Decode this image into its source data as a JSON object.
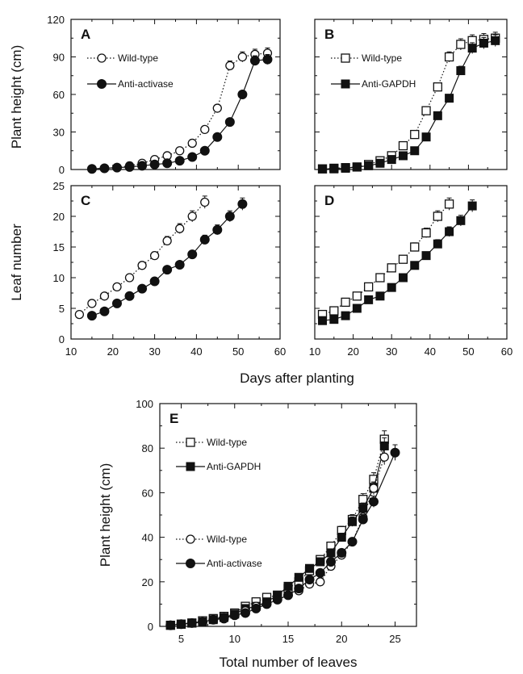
{
  "figure": {
    "shared_xlabel_top": "Days after planting",
    "ylabel_height": "Plant height (cm)",
    "ylabel_leaf": "Leaf number"
  },
  "chart_data": [
    {
      "panel": "A",
      "type": "line",
      "xlabel": "",
      "ylabel": "Plant height (cm)",
      "xlim": [
        10,
        60
      ],
      "ylim": [
        0,
        120
      ],
      "xticks": [],
      "yticks": [
        0,
        30,
        60,
        90,
        120
      ],
      "legend": "top-left",
      "series": [
        {
          "name": "Wild-type",
          "marker": "open-circle",
          "line": "dotted",
          "x": [
            15,
            18,
            21,
            24,
            27,
            30,
            33,
            36,
            39,
            42,
            45,
            48,
            51,
            54,
            57
          ],
          "y": [
            0.5,
            1,
            1.5,
            3,
            5,
            8,
            11,
            15,
            21,
            32,
            49,
            83,
            90,
            92,
            93
          ]
        },
        {
          "name": "Anti-activase",
          "marker": "filled-circle",
          "line": "solid",
          "x": [
            15,
            18,
            21,
            24,
            27,
            30,
            33,
            36,
            39,
            42,
            45,
            48,
            51,
            54,
            57
          ],
          "y": [
            0.5,
            1,
            1.5,
            2,
            3,
            4,
            5,
            7,
            10,
            15,
            26,
            38,
            60,
            87,
            88
          ]
        }
      ]
    },
    {
      "panel": "B",
      "type": "line",
      "xlabel": "",
      "ylabel": "",
      "xlim": [
        10,
        60
      ],
      "ylim": [
        0,
        120
      ],
      "xticks": [],
      "yticks": [],
      "legend": "top-left",
      "series": [
        {
          "name": "Wild-type",
          "marker": "open-square",
          "line": "dotted",
          "x": [
            12,
            15,
            18,
            21,
            24,
            27,
            30,
            33,
            36,
            39,
            42,
            45,
            48,
            51,
            54,
            57
          ],
          "y": [
            0.5,
            1,
            1.5,
            2,
            4,
            7,
            11,
            19,
            28,
            47,
            66,
            90,
            100,
            103,
            104,
            105
          ]
        },
        {
          "name": "Anti-GAPDH",
          "marker": "filled-square",
          "line": "solid",
          "x": [
            12,
            15,
            18,
            21,
            24,
            27,
            30,
            33,
            36,
            39,
            42,
            45,
            48,
            51,
            54,
            57
          ],
          "y": [
            0.5,
            0.5,
            1,
            2,
            3,
            5,
            8,
            11,
            15,
            26,
            43,
            57,
            79,
            97,
            101,
            103
          ]
        }
      ]
    },
    {
      "panel": "C",
      "type": "line",
      "xlabel": "",
      "ylabel": "Leaf number",
      "xlim": [
        10,
        60
      ],
      "ylim": [
        0,
        25
      ],
      "xticks": [
        10,
        20,
        30,
        40,
        50,
        60
      ],
      "yticks": [
        0,
        5,
        10,
        15,
        20,
        25
      ],
      "legend": "",
      "series": [
        {
          "name": "Wild-type",
          "marker": "open-circle",
          "line": "dotted",
          "x": [
            12,
            15,
            18,
            21,
            24,
            27,
            30,
            33,
            36,
            39,
            42
          ],
          "y": [
            4,
            5.8,
            7,
            8.5,
            10,
            12,
            13.6,
            16,
            18,
            20,
            22.3
          ]
        },
        {
          "name": "Anti-activase",
          "marker": "filled-circle",
          "line": "solid",
          "x": [
            15,
            18,
            21,
            24,
            27,
            30,
            33,
            36,
            39,
            42,
            45,
            48,
            51
          ],
          "y": [
            3.8,
            4.5,
            5.8,
            7,
            8.2,
            9.4,
            11.3,
            12.1,
            13.8,
            16.2,
            17.8,
            20,
            22
          ]
        }
      ]
    },
    {
      "panel": "D",
      "type": "line",
      "xlabel": "",
      "ylabel": "",
      "xlim": [
        10,
        60
      ],
      "ylim": [
        0,
        25
      ],
      "xticks": [
        10,
        20,
        30,
        40,
        50,
        60
      ],
      "yticks": [],
      "legend": "",
      "series": [
        {
          "name": "Wild-type",
          "marker": "open-square",
          "line": "dotted",
          "x": [
            12,
            15,
            18,
            21,
            24,
            27,
            30,
            33,
            36,
            39,
            42,
            45
          ],
          "y": [
            4,
            4.6,
            6,
            7,
            8.5,
            10,
            11.6,
            13,
            15,
            17.3,
            20,
            22
          ]
        },
        {
          "name": "Anti-GAPDH",
          "marker": "filled-square",
          "line": "solid",
          "x": [
            12,
            15,
            18,
            21,
            24,
            27,
            30,
            33,
            36,
            39,
            42,
            45,
            48,
            51
          ],
          "y": [
            3,
            3.2,
            3.8,
            5,
            6.4,
            7,
            8.4,
            10,
            12,
            13.6,
            15.5,
            17.5,
            19.3,
            21.7
          ]
        }
      ]
    },
    {
      "panel": "E",
      "type": "line",
      "xlabel": "Total number of leaves",
      "ylabel": "Plant height (cm)",
      "xlim": [
        3,
        27
      ],
      "ylim": [
        0,
        100
      ],
      "xticks": [
        5,
        10,
        15,
        20,
        25
      ],
      "yticks": [
        0,
        20,
        40,
        60,
        80,
        100
      ],
      "legend": "top-left",
      "series": [
        {
          "name": "Wild-type",
          "marker": "open-square",
          "line": "dotted",
          "x": [
            4,
            5,
            6,
            7,
            8,
            9,
            10,
            11,
            12,
            13,
            14,
            15,
            16,
            17,
            18,
            19,
            20,
            21,
            22,
            23,
            24
          ],
          "y": [
            0.5,
            1,
            1.5,
            2.5,
            3.5,
            4.5,
            6,
            9,
            11,
            13,
            14,
            17,
            20,
            25,
            30,
            36,
            43,
            48,
            57,
            66,
            84
          ]
        },
        {
          "name": "Anti-GAPDH",
          "marker": "filled-square",
          "line": "solid",
          "x": [
            4,
            5,
            6,
            7,
            8,
            9,
            10,
            11,
            12,
            13,
            14,
            15,
            16,
            17,
            18,
            19,
            20,
            21,
            22,
            23,
            24
          ],
          "y": [
            0.5,
            1,
            1.5,
            2,
            3,
            4,
            5.5,
            8,
            9,
            11,
            14,
            18,
            22,
            26,
            29,
            33,
            40,
            47,
            53,
            62,
            81
          ]
        },
        {
          "name": "Wild-type",
          "marker": "open-circle",
          "line": "dotted",
          "x": [
            4,
            5,
            6,
            7,
            8,
            9,
            10,
            11,
            12,
            13,
            14,
            15,
            16,
            17,
            18,
            19,
            20,
            21,
            22,
            23,
            24
          ],
          "y": [
            0.5,
            1,
            1.5,
            2,
            3,
            4,
            5,
            7,
            9,
            10,
            12,
            14,
            16,
            19,
            20,
            27,
            32,
            38,
            49,
            62,
            76
          ]
        },
        {
          "name": "Anti-activase",
          "marker": "filled-circle",
          "line": "solid",
          "x": [
            4,
            5,
            6,
            7,
            8,
            9,
            10,
            11,
            12,
            13,
            14,
            15,
            16,
            17,
            18,
            19,
            20,
            21,
            22,
            23,
            25
          ],
          "y": [
            0.5,
            1,
            1.5,
            2,
            3,
            3.5,
            5,
            6,
            8,
            10,
            12,
            14,
            17,
            21,
            24,
            29,
            33,
            38,
            48,
            56,
            78
          ]
        }
      ]
    }
  ]
}
